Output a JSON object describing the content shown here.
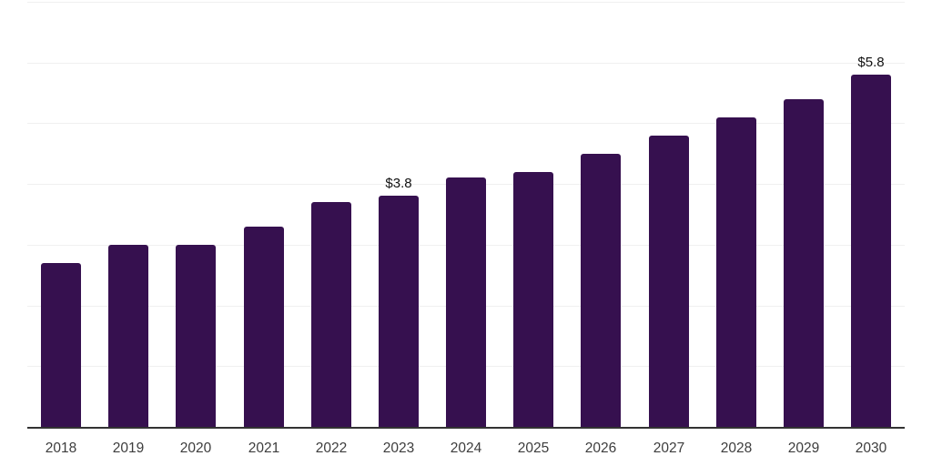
{
  "chart_data": {
    "type": "bar",
    "title": "",
    "xlabel": "",
    "ylabel": "",
    "categories": [
      "2018",
      "2019",
      "2020",
      "2021",
      "2022",
      "2023",
      "2024",
      "2025",
      "2026",
      "2027",
      "2028",
      "2029",
      "2030"
    ],
    "values": [
      2.7,
      3.0,
      3.0,
      3.3,
      3.7,
      3.8,
      4.1,
      4.2,
      4.5,
      4.8,
      5.1,
      5.4,
      5.8
    ],
    "data_labels": [
      "",
      "",
      "",
      "",
      "",
      "$3.8",
      "",
      "",
      "",
      "",
      "",
      "",
      "$5.8"
    ],
    "ylim": [
      0,
      7
    ],
    "gridline_interval": 1,
    "grid": true,
    "legend": "none",
    "y_axis_tick_labels_visible": false,
    "colors": {
      "bar": "#36104f",
      "axis": "#333333",
      "gridline": "#f0f0f0",
      "tick_label": "#3d3d3d",
      "data_label": "#111111",
      "background": "#ffffff"
    }
  }
}
